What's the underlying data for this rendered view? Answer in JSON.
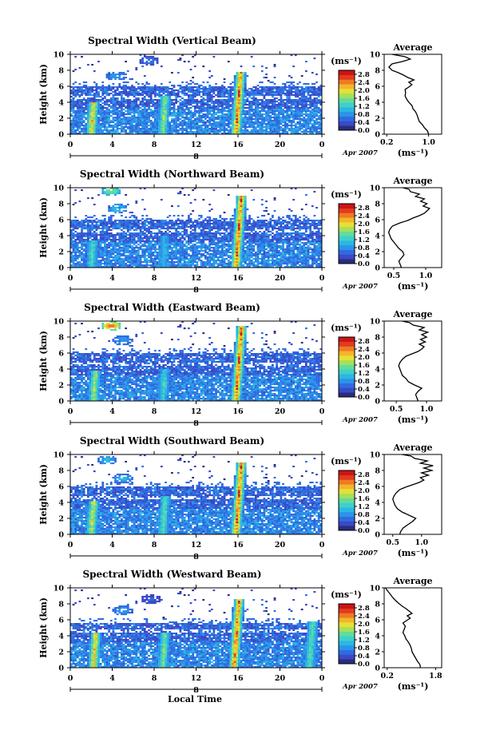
{
  "colors": {
    "colormap": [
      "#2b2c7c",
      "#3a49c7",
      "#2f6be0",
      "#2c93ea",
      "#2bb7e3",
      "#3fd0c7",
      "#62dc9c",
      "#a6e05a",
      "#e6e034",
      "#f3b52a",
      "#ef7a22",
      "#e23b1e",
      "#cc1414"
    ],
    "profile_line": "#000000"
  },
  "figure": {
    "xaxis_label": "Local Time",
    "date_label": "Apr 2007",
    "colorbar_unit": "(ms⁻¹)",
    "profile_title": "Average",
    "profile_unit": "(ms⁻¹)",
    "y_label": "Height (km)"
  },
  "chart_data": [
    {
      "type": "heatmap",
      "title": "Spectral Width (Vertical Beam)",
      "ylabel": "Height (km)",
      "xlim": [
        0,
        24
      ],
      "ylim": [
        0,
        10
      ],
      "x_ticks": [
        "0",
        "4",
        "8",
        "12",
        "16",
        "20",
        "0"
      ],
      "y_ticks": [
        "0",
        "2",
        "4",
        "6",
        "8",
        "10"
      ],
      "day_label": "8",
      "colorbar": {
        "ticks": [
          "0.0",
          "0.4",
          "0.8",
          "1.2",
          "1.6",
          "2.0",
          "2.4",
          "2.8"
        ],
        "range": [
          0,
          3.0
        ]
      },
      "features": {
        "cloud_top_km": 6.0,
        "hot_columns": [
          {
            "t": 2.0,
            "top": 4.0,
            "v": 2.6
          },
          {
            "t": 8.8,
            "top": 4.8,
            "v": 2.0
          },
          {
            "t": 15.8,
            "top": 7.8,
            "v": 2.9
          }
        ],
        "upper_patches": [
          {
            "t": 4.4,
            "h": 7.3,
            "v": 0.9
          },
          {
            "t": 7.5,
            "h": 9.2,
            "v": 0.6
          }
        ]
      },
      "profile": {
        "xlim": [
          0.15,
          1.25
        ],
        "x_ticks": [
          "0.2",
          "1.0"
        ],
        "x_tick_values": [
          0.2,
          1.0
        ],
        "points": [
          [
            1.0,
            0
          ],
          [
            0.98,
            0.4
          ],
          [
            0.92,
            0.8
          ],
          [
            0.88,
            1.2
          ],
          [
            0.82,
            1.6
          ],
          [
            0.8,
            2.0
          ],
          [
            0.78,
            2.4
          ],
          [
            0.75,
            2.8
          ],
          [
            0.7,
            3.2
          ],
          [
            0.68,
            3.6
          ],
          [
            0.62,
            4.0
          ],
          [
            0.58,
            4.4
          ],
          [
            0.55,
            4.8
          ],
          [
            0.56,
            5.2
          ],
          [
            0.55,
            5.6
          ],
          [
            0.62,
            5.9
          ],
          [
            0.68,
            6.2
          ],
          [
            0.62,
            6.5
          ],
          [
            0.72,
            6.8
          ],
          [
            0.6,
            7.1
          ],
          [
            0.52,
            7.4
          ],
          [
            0.42,
            7.7
          ],
          [
            0.3,
            8.0
          ],
          [
            0.24,
            8.4
          ],
          [
            0.3,
            8.8
          ],
          [
            0.5,
            9.1
          ],
          [
            0.65,
            9.4
          ],
          [
            0.55,
            9.7
          ],
          [
            0.3,
            10.0
          ]
        ]
      }
    },
    {
      "type": "heatmap",
      "title": "Spectral Width (Northward Beam)",
      "ylabel": "Height (km)",
      "xlim": [
        0,
        24
      ],
      "ylim": [
        0,
        10
      ],
      "x_ticks": [
        "0",
        "4",
        "8",
        "12",
        "16",
        "20",
        "0"
      ],
      "y_ticks": [
        "0",
        "2",
        "4",
        "6",
        "8",
        "10"
      ],
      "day_label": "8",
      "colorbar": {
        "ticks": [
          "0.0",
          "0.4",
          "0.8",
          "1.2",
          "1.6",
          "2.0",
          "2.4",
          "2.8"
        ],
        "range": [
          0,
          3.0
        ]
      },
      "features": {
        "cloud_top_km": 6.0,
        "hot_columns": [
          {
            "t": 2.0,
            "top": 3.5,
            "v": 1.6
          },
          {
            "t": 8.8,
            "top": 4.0,
            "v": 1.2
          },
          {
            "t": 15.8,
            "top": 9.0,
            "v": 2.9
          }
        ],
        "upper_patches": [
          {
            "t": 4.5,
            "h": 7.4,
            "v": 1.1
          },
          {
            "t": 3.9,
            "h": 9.6,
            "v": 1.6
          }
        ]
      },
      "profile": {
        "xlim": [
          0.35,
          1.25
        ],
        "x_ticks": [
          "0.5",
          "1.0"
        ],
        "x_tick_values": [
          0.5,
          1.0
        ],
        "points": [
          [
            0.62,
            0
          ],
          [
            0.6,
            0.4
          ],
          [
            0.58,
            0.8
          ],
          [
            0.62,
            1.2
          ],
          [
            0.66,
            1.6
          ],
          [
            0.64,
            2.0
          ],
          [
            0.58,
            2.4
          ],
          [
            0.54,
            2.8
          ],
          [
            0.5,
            3.2
          ],
          [
            0.46,
            3.6
          ],
          [
            0.44,
            4.0
          ],
          [
            0.42,
            4.4
          ],
          [
            0.44,
            4.8
          ],
          [
            0.48,
            5.2
          ],
          [
            0.6,
            5.6
          ],
          [
            0.72,
            5.9
          ],
          [
            0.8,
            6.2
          ],
          [
            0.9,
            6.5
          ],
          [
            0.98,
            6.8
          ],
          [
            1.02,
            7.1
          ],
          [
            1.06,
            7.4
          ],
          [
            0.96,
            7.7
          ],
          [
            1.02,
            8.0
          ],
          [
            0.92,
            8.3
          ],
          [
            0.98,
            8.6
          ],
          [
            0.84,
            8.9
          ],
          [
            0.9,
            9.2
          ],
          [
            0.76,
            9.5
          ],
          [
            0.74,
            9.8
          ],
          [
            0.64,
            10.0
          ]
        ]
      }
    },
    {
      "type": "heatmap",
      "title": "Spectral Width (Eastward Beam)",
      "ylabel": "Height (km)",
      "xlim": [
        0,
        24
      ],
      "ylim": [
        0,
        10
      ],
      "x_ticks": [
        "0",
        "4",
        "8",
        "12",
        "16",
        "20",
        "0"
      ],
      "y_ticks": [
        "0",
        "2",
        "4",
        "6",
        "8",
        "10"
      ],
      "day_label": "8",
      "colorbar": {
        "ticks": [
          "0.0",
          "0.4",
          "0.8",
          "1.2",
          "1.6",
          "2.0",
          "2.4",
          "2.8"
        ],
        "range": [
          0,
          3.0
        ]
      },
      "features": {
        "cloud_top_km": 6.0,
        "hot_columns": [
          {
            "t": 2.2,
            "top": 3.8,
            "v": 2.1
          },
          {
            "t": 8.8,
            "top": 4.0,
            "v": 1.5
          },
          {
            "t": 15.8,
            "top": 9.4,
            "v": 2.9
          }
        ],
        "upper_patches": [
          {
            "t": 5.0,
            "h": 7.6,
            "v": 0.9
          },
          {
            "t": 3.9,
            "h": 9.4,
            "v": 2.4
          }
        ]
      },
      "profile": {
        "xlim": [
          0.3,
          1.25
        ],
        "x_ticks": [
          "0.5",
          "1.0"
        ],
        "x_tick_values": [
          0.5,
          1.0
        ],
        "points": [
          [
            0.86,
            0
          ],
          [
            0.84,
            0.4
          ],
          [
            0.82,
            0.8
          ],
          [
            0.86,
            1.2
          ],
          [
            0.92,
            1.6
          ],
          [
            0.8,
            2.0
          ],
          [
            0.7,
            2.4
          ],
          [
            0.66,
            2.8
          ],
          [
            0.6,
            3.2
          ],
          [
            0.58,
            3.6
          ],
          [
            0.56,
            4.0
          ],
          [
            0.54,
            4.4
          ],
          [
            0.56,
            4.8
          ],
          [
            0.6,
            5.2
          ],
          [
            0.66,
            5.6
          ],
          [
            0.76,
            5.9
          ],
          [
            0.86,
            6.2
          ],
          [
            0.92,
            6.5
          ],
          [
            0.96,
            6.8
          ],
          [
            0.88,
            7.1
          ],
          [
            0.98,
            7.4
          ],
          [
            0.9,
            7.7
          ],
          [
            1.0,
            8.0
          ],
          [
            0.92,
            8.3
          ],
          [
            1.02,
            8.6
          ],
          [
            0.88,
            8.9
          ],
          [
            0.96,
            9.2
          ],
          [
            0.78,
            9.5
          ],
          [
            0.72,
            9.8
          ],
          [
            0.6,
            10.0
          ]
        ]
      }
    },
    {
      "type": "heatmap",
      "title": "Spectral Width (Southward Beam)",
      "ylabel": "Height (km)",
      "xlim": [
        0,
        24
      ],
      "ylim": [
        0,
        10
      ],
      "x_ticks": [
        "0",
        "4",
        "8",
        "12",
        "16",
        "20",
        "0"
      ],
      "y_ticks": [
        "0",
        "2",
        "4",
        "6",
        "8",
        "10"
      ],
      "day_label": "8",
      "colorbar": {
        "ticks": [
          "0.0",
          "0.4",
          "0.8",
          "1.2",
          "1.6",
          "2.0",
          "2.4",
          "2.8"
        ],
        "range": [
          0,
          3.0
        ]
      },
      "features": {
        "cloud_top_km": 6.0,
        "hot_columns": [
          {
            "t": 2.0,
            "top": 4.2,
            "v": 2.3
          },
          {
            "t": 8.8,
            "top": 4.8,
            "v": 1.7
          },
          {
            "t": 15.8,
            "top": 9.0,
            "v": 2.9
          }
        ],
        "upper_patches": [
          {
            "t": 5.0,
            "h": 7.0,
            "v": 1.0
          },
          {
            "t": 3.5,
            "h": 9.3,
            "v": 1.0
          }
        ]
      },
      "profile": {
        "xlim": [
          0.35,
          1.35
        ],
        "x_ticks": [
          "0.5",
          "1.0"
        ],
        "x_tick_values": [
          0.5,
          1.0
        ],
        "points": [
          [
            0.62,
            0
          ],
          [
            0.64,
            0.4
          ],
          [
            0.68,
            0.8
          ],
          [
            0.76,
            1.2
          ],
          [
            0.84,
            1.6
          ],
          [
            0.9,
            2.0
          ],
          [
            0.78,
            2.4
          ],
          [
            0.66,
            2.8
          ],
          [
            0.58,
            3.2
          ],
          [
            0.54,
            3.6
          ],
          [
            0.52,
            4.0
          ],
          [
            0.5,
            4.4
          ],
          [
            0.52,
            4.8
          ],
          [
            0.56,
            5.2
          ],
          [
            0.62,
            5.6
          ],
          [
            0.72,
            5.9
          ],
          [
            0.84,
            6.2
          ],
          [
            0.96,
            6.5
          ],
          [
            1.04,
            6.8
          ],
          [
            0.98,
            7.1
          ],
          [
            1.12,
            7.4
          ],
          [
            1.0,
            7.7
          ],
          [
            1.18,
            8.0
          ],
          [
            1.04,
            8.3
          ],
          [
            1.2,
            8.6
          ],
          [
            0.98,
            8.9
          ],
          [
            1.1,
            9.2
          ],
          [
            0.88,
            9.5
          ],
          [
            0.82,
            9.8
          ],
          [
            0.66,
            10.0
          ]
        ]
      }
    },
    {
      "type": "heatmap",
      "title": "Spectral Width (Westward Beam)",
      "ylabel": "Height (km)",
      "xlim": [
        0,
        24
      ],
      "ylim": [
        0,
        10
      ],
      "x_ticks": [
        "0",
        "4",
        "8",
        "12",
        "16",
        "20",
        "0"
      ],
      "y_ticks": [
        "0",
        "2",
        "4",
        "6",
        "8",
        "10"
      ],
      "day_label": "8",
      "colorbar": {
        "ticks": [
          "0.0",
          "0.4",
          "0.8",
          "1.2",
          "1.6",
          "2.0",
          "2.4",
          "2.8"
        ],
        "range": [
          0,
          3.0
        ]
      },
      "features": {
        "cloud_top_km": 5.6,
        "hot_columns": [
          {
            "t": 2.2,
            "top": 4.4,
            "v": 2.6
          },
          {
            "t": 8.8,
            "top": 4.4,
            "v": 1.9
          },
          {
            "t": 15.6,
            "top": 8.6,
            "v": 2.9
          },
          {
            "t": 22.8,
            "top": 5.8,
            "v": 1.7
          }
        ],
        "upper_patches": [
          {
            "t": 5.0,
            "h": 7.2,
            "v": 0.9
          },
          {
            "t": 7.7,
            "h": 8.6,
            "v": 0.5
          }
        ]
      },
      "profile": {
        "xlim": [
          0.1,
          2.0
        ],
        "x_ticks": [
          "0.2",
          "1.8"
        ],
        "x_tick_values": [
          0.2,
          1.8
        ],
        "points": [
          [
            1.3,
            0
          ],
          [
            1.28,
            0.4
          ],
          [
            1.2,
            0.8
          ],
          [
            1.14,
            1.2
          ],
          [
            1.08,
            1.6
          ],
          [
            1.02,
            2.0
          ],
          [
            1.0,
            2.4
          ],
          [
            0.96,
            2.8
          ],
          [
            0.9,
            3.2
          ],
          [
            0.82,
            3.6
          ],
          [
            0.78,
            4.0
          ],
          [
            0.72,
            4.4
          ],
          [
            0.76,
            4.8
          ],
          [
            0.8,
            5.2
          ],
          [
            0.72,
            5.6
          ],
          [
            0.84,
            5.9
          ],
          [
            0.96,
            6.2
          ],
          [
            0.86,
            6.5
          ],
          [
            1.02,
            6.8
          ],
          [
            0.92,
            7.1
          ],
          [
            0.82,
            7.4
          ],
          [
            0.7,
            7.7
          ],
          [
            0.6,
            8.0
          ],
          [
            0.48,
            8.4
          ],
          [
            0.38,
            8.8
          ],
          [
            0.3,
            9.2
          ],
          [
            0.22,
            9.6
          ],
          [
            0.14,
            10.0
          ]
        ]
      }
    }
  ]
}
